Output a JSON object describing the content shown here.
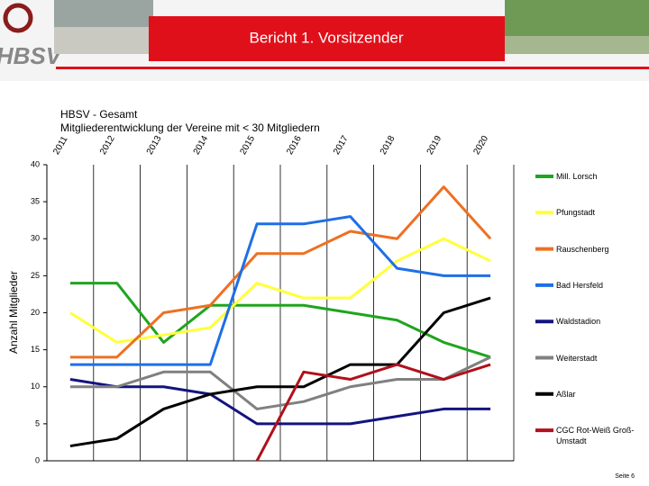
{
  "header": {
    "logo": "HBSV",
    "title": "Bericht 1. Vorsitzender"
  },
  "chart_data": {
    "type": "line",
    "title": "HBSV - Gesamt",
    "subtitle": "Mitgliederentwicklung der Vereine mit < 30 Mitgliedern",
    "y_label": "Anzahl Mitglieder",
    "categories": [
      "2011",
      "2012",
      "2013",
      "2014",
      "2015",
      "2016",
      "2017",
      "2018",
      "2019",
      "2020"
    ],
    "ylim": [
      0,
      40
    ],
    "yticks": [
      0,
      5,
      10,
      15,
      20,
      25,
      30,
      35,
      40
    ],
    "grid": true,
    "legend": "right",
    "series": [
      {
        "name": "Mill. Lorsch",
        "color": "#1fa51f",
        "values": [
          24,
          24,
          16,
          21,
          21,
          21,
          20,
          19,
          16,
          14
        ]
      },
      {
        "name": "Pfungstadt",
        "color": "#ffff3c",
        "values": [
          20,
          16,
          17,
          18,
          24,
          22,
          22,
          27,
          30,
          27
        ]
      },
      {
        "name": "Rauschenberg",
        "color": "#ee7022",
        "values": [
          14,
          14,
          20,
          21,
          28,
          28,
          31,
          30,
          37,
          30
        ]
      },
      {
        "name": "Bad Hersfeld",
        "color": "#1e6fe6",
        "values": [
          13,
          13,
          13,
          13,
          32,
          32,
          33,
          26,
          25,
          25
        ]
      },
      {
        "name": "Waldstadion",
        "color": "#14147e",
        "values": [
          11,
          10,
          10,
          9,
          5,
          5,
          5,
          6,
          7,
          7
        ]
      },
      {
        "name": "Weiterstadt",
        "color": "#808080",
        "values": [
          10,
          10,
          12,
          12,
          7,
          8,
          10,
          11,
          11,
          14
        ]
      },
      {
        "name": "Aßlar",
        "color": "#000000",
        "values": [
          2,
          3,
          7,
          9,
          10,
          10,
          13,
          13,
          20,
          22
        ]
      },
      {
        "name": "CGC Rot-Weiß Groß-Umstadt",
        "color": "#b0101c",
        "values": [
          null,
          null,
          null,
          null,
          0,
          12,
          11,
          13,
          11,
          13
        ]
      }
    ]
  },
  "footer": "Seite 6"
}
